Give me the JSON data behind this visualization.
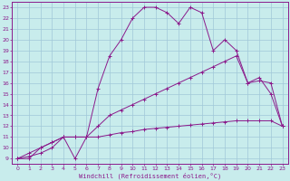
{
  "xlabel": "Windchill (Refroidissement éolien,°C)",
  "xlim": [
    -0.5,
    23.5
  ],
  "ylim": [
    8.5,
    23.5
  ],
  "yticks": [
    9,
    10,
    11,
    12,
    13,
    14,
    15,
    16,
    17,
    18,
    19,
    20,
    21,
    22,
    23
  ],
  "xticks": [
    0,
    1,
    2,
    3,
    4,
    5,
    6,
    7,
    8,
    9,
    10,
    11,
    12,
    13,
    14,
    15,
    16,
    17,
    18,
    19,
    20,
    21,
    22,
    23
  ],
  "bg_color": "#c8ecec",
  "grid_color": "#a0c8d8",
  "line_color": "#8b1a8b",
  "line1_x": [
    0,
    1,
    2,
    3,
    4,
    5,
    6,
    7,
    8,
    9,
    10,
    11,
    12,
    13,
    14,
    15,
    16,
    17,
    18,
    19,
    20,
    21,
    22,
    23
  ],
  "line1_y": [
    9,
    9,
    10,
    10.5,
    11,
    9,
    11,
    15.5,
    18.5,
    20,
    22,
    23,
    23,
    22.5,
    21.5,
    23,
    22.5,
    19,
    20,
    19,
    16,
    16.5,
    15,
    12
  ],
  "line2_x": [
    0,
    1,
    2,
    3,
    4,
    5,
    6,
    7,
    8,
    9,
    10,
    11,
    12,
    13,
    14,
    15,
    16,
    17,
    18,
    19,
    20,
    21,
    22,
    23
  ],
  "line2_y": [
    9,
    9.5,
    10,
    10.5,
    11,
    11,
    11,
    12,
    13,
    13.5,
    14,
    14.5,
    15,
    15.5,
    16,
    16.5,
    17,
    17.5,
    18,
    18.5,
    16,
    16.2,
    16,
    12
  ],
  "line3_x": [
    0,
    1,
    2,
    3,
    4,
    5,
    6,
    7,
    8,
    9,
    10,
    11,
    12,
    13,
    14,
    15,
    16,
    17,
    18,
    19,
    20,
    21,
    22,
    23
  ],
  "line3_y": [
    9,
    9.2,
    9.5,
    10,
    11,
    11,
    11,
    11,
    11.2,
    11.4,
    11.5,
    11.7,
    11.8,
    11.9,
    12.0,
    12.1,
    12.2,
    12.3,
    12.4,
    12.5,
    12.5,
    12.5,
    12.5,
    12
  ]
}
